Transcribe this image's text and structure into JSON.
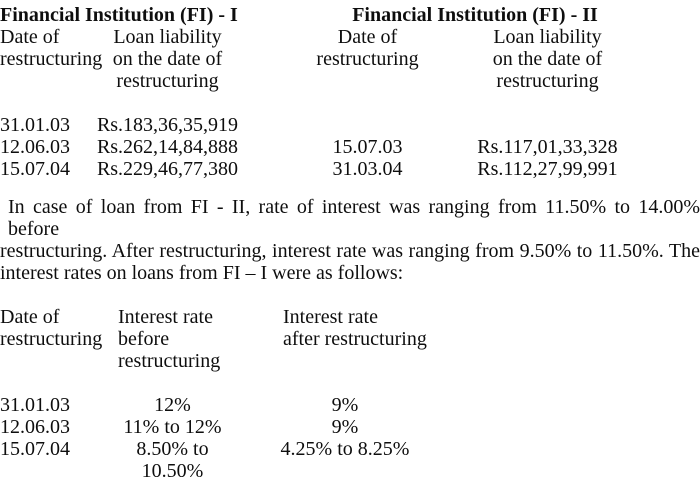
{
  "colors": {
    "background": "#ffffff",
    "text": "#0e0e0e"
  },
  "fi1": {
    "title": "Financial Institution (FI) - I",
    "columns": {
      "date": [
        "Date of",
        "restructuring"
      ],
      "loan": [
        "Loan liability",
        "on the date of",
        "restructuring"
      ]
    },
    "rows": [
      {
        "date": "31.01.03",
        "loan_liability": "Rs.183,36,35,919"
      },
      {
        "date": "12.06.03",
        "loan_liability": "Rs.262,14,84,888"
      },
      {
        "date": "15.07.04",
        "loan_liability": "Rs.229,46,77,380"
      }
    ]
  },
  "fi2": {
    "title": "Financial Institution (FI) - II",
    "columns": {
      "date": [
        "Date of",
        "restructuring"
      ],
      "loan": [
        "Loan liability",
        "on the date of",
        "restructuring"
      ]
    },
    "rows": [
      {
        "date": "15.07.03",
        "loan_liability": "Rs.117,01,33,328"
      },
      {
        "date": "31.03.04",
        "loan_liability": "Rs.112,27,99,991"
      }
    ]
  },
  "paragraph": {
    "lines": [
      "In case of loan from FI - II, rate of interest was ranging from 11.50% to 14.00% before",
      "restructuring. After restructuring, interest rate was ranging from 9.50% to 11.50%. The",
      "interest rates on loans from FI – I were as follows:"
    ]
  },
  "rates_table": {
    "columns": {
      "date": [
        "Date of",
        "restructuring"
      ],
      "before": [
        "Interest rate",
        "before",
        "restructuring"
      ],
      "after": [
        "Interest rate",
        "after restructuring"
      ]
    },
    "rows": [
      {
        "date": "31.01.03",
        "before": "12%",
        "after": "9%"
      },
      {
        "date": "12.06.03",
        "before": "11% to 12%",
        "after": "9%"
      },
      {
        "date": "15.07.04",
        "before": "8.50% to 10.50%",
        "after": "4.25% to 8.25%"
      }
    ]
  }
}
